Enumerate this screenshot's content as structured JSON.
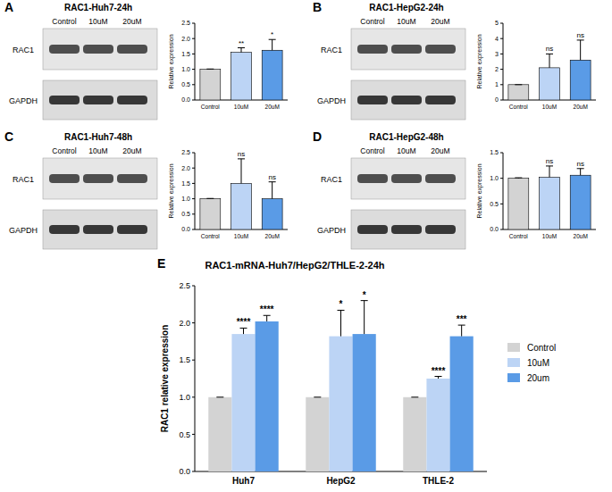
{
  "chart_data": [
    {
      "type": "bar",
      "panel_label": "A",
      "title": "RAC1-Huh7-24h",
      "blot": {
        "lanes": [
          "Control",
          "10uM",
          "20uM"
        ],
        "bands": [
          "RAC1",
          "GAPDH"
        ]
      },
      "y_label": "Relative expression",
      "categories": [
        "Control",
        "10uM",
        "20uM"
      ],
      "values": [
        1.0,
        1.55,
        1.62
      ],
      "errors": [
        0.01,
        0.15,
        0.35
      ],
      "colors": [
        "#d3d3d3",
        "#bcd4f5",
        "#5a9be6"
      ],
      "annotations": [
        null,
        "**",
        "*"
      ],
      "ylim": [
        0,
        2.5
      ],
      "yticks": [
        {
          "value": 0,
          "label": "0.0"
        },
        0.5,
        {
          "value": 1,
          "label": "1.0"
        },
        1.5,
        {
          "value": 2,
          "label": "2.0"
        },
        2.5
      ],
      "grid": false
    },
    {
      "type": "bar",
      "panel_label": "B",
      "title": "RAC1-HepG2-24h",
      "blot": {
        "lanes": [
          "Control",
          "10uM",
          "20uM"
        ],
        "bands": [
          "RAC1",
          "GAPDH"
        ]
      },
      "y_label": "Relative expression",
      "categories": [
        "Control",
        "10uM",
        "20uM"
      ],
      "values": [
        1.0,
        2.1,
        2.6
      ],
      "errors": [
        0,
        0.9,
        1.3
      ],
      "colors": [
        "#d3d3d3",
        "#bcd4f5",
        "#5a9be6"
      ],
      "annotations": [
        null,
        "ns",
        "ns"
      ],
      "ylim": [
        0,
        5
      ],
      "yticks": [
        0,
        1,
        2,
        3,
        4,
        5
      ],
      "grid": false
    },
    {
      "type": "bar",
      "panel_label": "C",
      "title": "RAC1-Huh7-48h",
      "blot": {
        "lanes": [
          "Control",
          "10uM",
          "20uM"
        ],
        "bands": [
          "RAC1",
          "GAPDH"
        ]
      },
      "y_label": "Relative expression",
      "categories": [
        "Control",
        "10uM",
        "20uM"
      ],
      "values": [
        1.0,
        1.5,
        1.0
      ],
      "errors": [
        0.01,
        0.8,
        0.55
      ],
      "colors": [
        "#d3d3d3",
        "#bcd4f5",
        "#5a9be6"
      ],
      "annotations": [
        null,
        "ns",
        "ns"
      ],
      "ylim": [
        0,
        2.5
      ],
      "yticks": [
        {
          "value": 0,
          "label": "0.0"
        },
        0.5,
        {
          "value": 1,
          "label": "1.0"
        },
        1.5,
        {
          "value": 2,
          "label": "2.0"
        },
        2.5
      ],
      "grid": false
    },
    {
      "type": "bar",
      "panel_label": "D",
      "title": "RAC1-HepG2-48h",
      "blot": {
        "lanes": [
          "Control",
          "10uM",
          "20uM"
        ],
        "bands": [
          "RAC1",
          "GAPDH"
        ]
      },
      "y_label": "Relative expression",
      "categories": [
        "Control",
        "10uM",
        "20uM"
      ],
      "values": [
        1.0,
        1.02,
        1.06
      ],
      "errors": [
        0.01,
        0.22,
        0.13
      ],
      "colors": [
        "#d3d3d3",
        "#bcd4f5",
        "#5a9be6"
      ],
      "annotations": [
        null,
        "ns",
        "ns"
      ],
      "ylim": [
        0,
        1.5
      ],
      "yticks": [
        {
          "value": 0,
          "label": "0.0"
        },
        0.5,
        {
          "value": 1,
          "label": "1.0"
        },
        1.5
      ],
      "grid": false
    },
    {
      "type": "bar",
      "panel_label": "E",
      "title": "RAC1-mRNA-Huh7/HepG2/THLE-2-24h",
      "y_label": "RAC1 relative expression",
      "categories": [
        "Huh7",
        "HepG2",
        "THLE-2"
      ],
      "series": [
        {
          "name": "Control",
          "color": "#d3d3d3",
          "values": [
            1,
            1,
            1
          ],
          "errors": [
            0,
            0,
            0
          ],
          "annotations": [
            null,
            null,
            null
          ]
        },
        {
          "name": "10uM",
          "color": "#bcd4f5",
          "values": [
            1.85,
            1.82,
            1.25
          ],
          "errors": [
            0.08,
            0.35,
            0.03
          ],
          "annotations": [
            "****",
            "*",
            "****"
          ]
        },
        {
          "name": "20um",
          "color": "#5a9be6",
          "values": [
            2.02,
            1.85,
            1.82
          ],
          "errors": [
            0.08,
            0.45,
            0.15
          ],
          "annotations": [
            "****",
            "*",
            "***"
          ]
        }
      ],
      "ylim": [
        0,
        2.5
      ],
      "yticks": [
        {
          "value": 0,
          "label": "0.0"
        },
        0.5,
        {
          "value": 1,
          "label": "1.0"
        },
        1.5,
        {
          "value": 2,
          "label": "2.0"
        },
        2.5
      ],
      "grid": false,
      "legend": "right"
    }
  ]
}
